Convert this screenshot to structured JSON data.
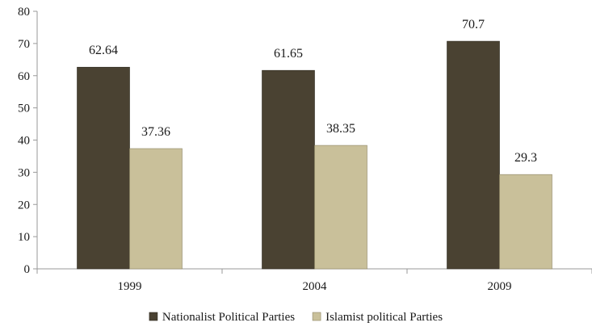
{
  "chart_data": {
    "type": "bar",
    "categories": [
      "1999",
      "2004",
      "2009"
    ],
    "series": [
      {
        "name": "Nationalist Political Parties",
        "values": [
          62.64,
          61.65,
          70.7
        ],
        "labels": [
          "62.64",
          "61.65",
          "70.7"
        ],
        "color": "#4a4232"
      },
      {
        "name": "Islamist political Parties",
        "values": [
          37.36,
          38.35,
          29.3
        ],
        "labels": [
          "37.36",
          "38.35",
          "29.3"
        ],
        "color": "#c9c09a"
      }
    ],
    "ylim": [
      0,
      80
    ],
    "yticks": [
      0,
      10,
      20,
      30,
      40,
      50,
      60,
      70,
      80
    ],
    "grid": false,
    "legend_position": "bottom",
    "title": "",
    "xlabel": "",
    "ylabel": ""
  }
}
